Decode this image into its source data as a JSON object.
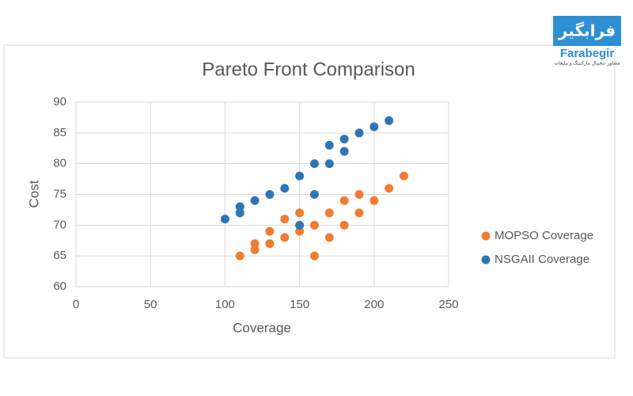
{
  "logo": {
    "persian": "فرابگیر",
    "name": "Farabegir",
    "tagline": "مشاور دیجیتال مارکتینگ و تبلیغات"
  },
  "chart_data": {
    "type": "scatter",
    "title": "Pareto Front Comparison",
    "x_label": "Coverage",
    "y_label": "Cost",
    "xlim": [
      0,
      250
    ],
    "xticks": [
      0,
      50,
      100,
      150,
      200,
      250
    ],
    "ylim": [
      60,
      90
    ],
    "yticks": [
      60,
      65,
      70,
      75,
      80,
      85,
      90
    ],
    "grid": true,
    "legend": "right",
    "series": [
      {
        "name": "MOPSO Coverage",
        "color": "#ed7d31",
        "x": [
          110,
          120,
          120,
          130,
          130,
          140,
          140,
          150,
          150,
          160,
          160,
          170,
          170,
          180,
          180,
          190,
          190,
          200,
          210,
          220
        ],
        "values": [
          65,
          67,
          66,
          69,
          67,
          71,
          68,
          72,
          69,
          70,
          65,
          72,
          68,
          74,
          70,
          75,
          72,
          74,
          76,
          78
        ]
      },
      {
        "name": "NSGAII Coverage",
        "color": "#2e75b6",
        "x": [
          100,
          110,
          110,
          120,
          130,
          140,
          150,
          150,
          160,
          160,
          170,
          170,
          180,
          180,
          190,
          200,
          210
        ],
        "values": [
          71,
          73,
          72,
          74,
          75,
          76,
          78,
          70,
          80,
          75,
          83,
          80,
          84,
          82,
          85,
          86,
          87
        ]
      }
    ]
  }
}
